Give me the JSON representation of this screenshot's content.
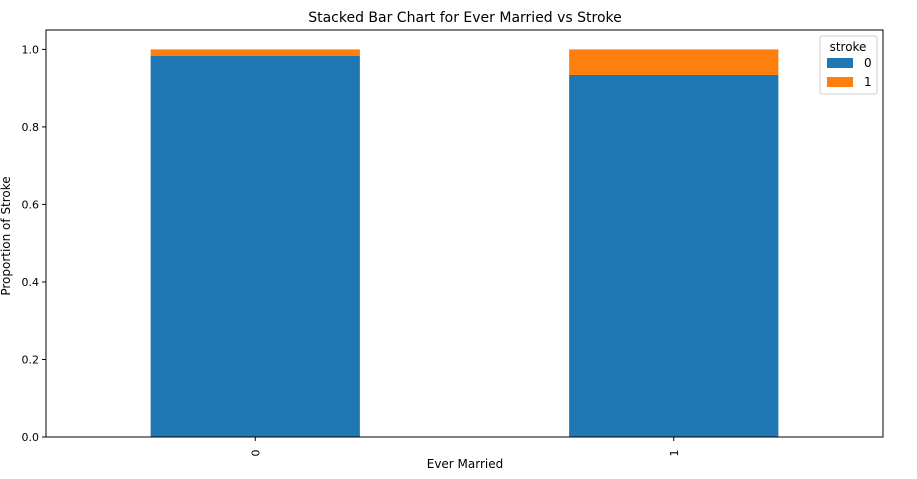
{
  "chart_data": {
    "type": "bar",
    "stacked": true,
    "title": "Stacked Bar Chart for Ever Married vs Stroke",
    "xlabel": "Ever Married",
    "ylabel": "Proportion of Stroke",
    "categories": [
      "0",
      "1"
    ],
    "series": [
      {
        "name": "0",
        "color": "#1f77b4",
        "values": [
          0.983,
          0.934
        ]
      },
      {
        "name": "1",
        "color": "#ff7f0e",
        "values": [
          0.017,
          0.066
        ]
      }
    ],
    "ylim": [
      0,
      1.05
    ],
    "yticks": [
      0.0,
      0.2,
      0.4,
      0.6,
      0.8,
      1.0
    ],
    "ytick_labels": [
      "0.0",
      "0.2",
      "0.4",
      "0.6",
      "0.8",
      "1.0"
    ],
    "legend": {
      "title": "stroke",
      "position": "top-right"
    },
    "grid": false
  }
}
